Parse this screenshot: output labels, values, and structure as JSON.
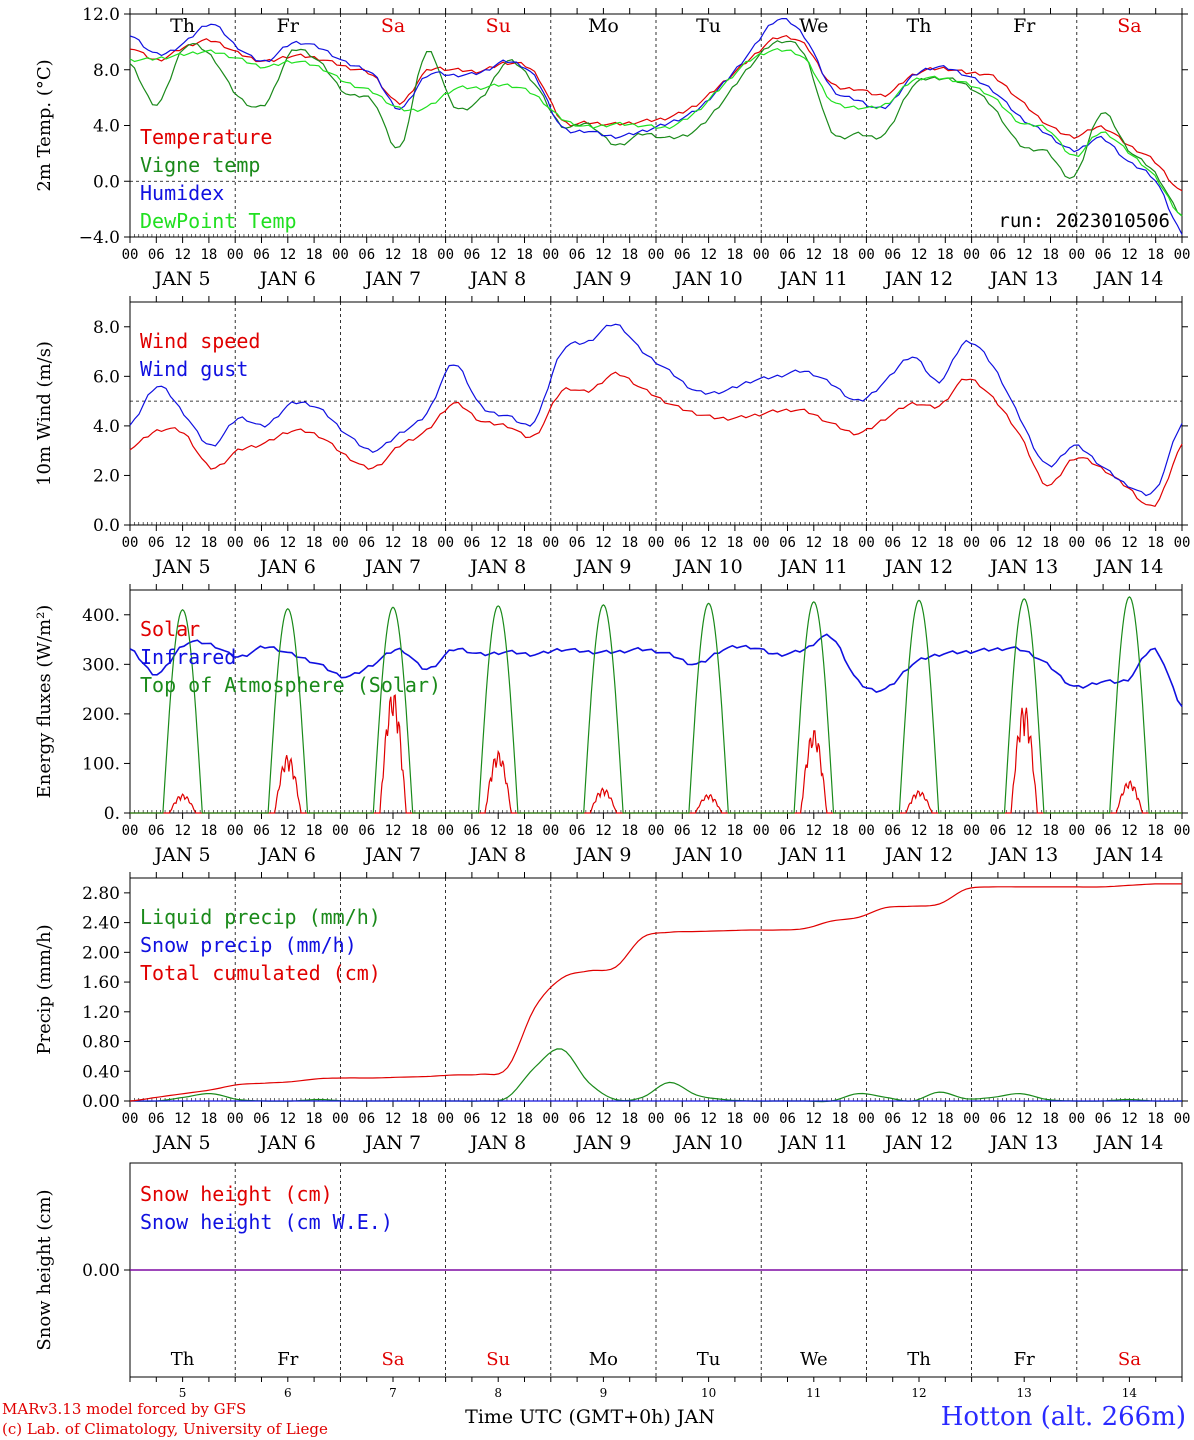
{
  "footer": {
    "credit_line1": "MARv3.13 model forced by GFS",
    "credit_line2": "(c) Lab. of Climatology, University of Liege",
    "station": "Hotton (alt. 266m)"
  },
  "colors": {
    "red": "#e00000",
    "green": "#1a8a1a",
    "blue": "#1010e0",
    "lightgreen": "#20e020",
    "purple": "#7a00a0",
    "blue_text": "#2a2aff"
  },
  "chart_data": [
    {
      "type": "line",
      "id": "temp",
      "ylabel": "2m Temp. (°C)",
      "ylim": [
        -4,
        12
      ],
      "yticks": [
        -4,
        0,
        4,
        8,
        12
      ],
      "tick_decimals": 1,
      "ref_line": 0,
      "run_label": "run: 2023010506",
      "day_labels": [
        "Th",
        "Fr",
        "Sa",
        "Su",
        "Mo",
        "Tu",
        "We",
        "Th",
        "Fr",
        "Sa"
      ],
      "weekend_days": [
        2,
        3,
        9
      ],
      "series": [
        {
          "name": "Temperature",
          "color": "#e00000",
          "values": [
            9.6,
            8.7,
            9.6,
            10.1,
            9.2,
            8.6,
            9.0,
            8.8,
            8.2,
            7.6,
            5.6,
            7.9,
            8.0,
            7.9,
            8.5,
            7.8,
            4.4,
            4.2,
            4.1,
            4.3,
            4.6,
            5.5,
            7.1,
            8.8,
            10.3,
            9.8,
            7.0,
            6.6,
            6.2,
            7.6,
            8.1,
            7.8,
            7.5,
            5.8,
            4.1,
            3.2,
            3.9,
            2.6,
            1.4,
            -0.8
          ]
        },
        {
          "name": "Vigne temp",
          "color": "#1a8a1a",
          "values": [
            8.4,
            5.5,
            9.6,
            9.0,
            6.1,
            5.5,
            9.3,
            8.6,
            6.3,
            5.8,
            2.4,
            9.3,
            5.4,
            5.9,
            8.6,
            7.0,
            4.0,
            4.1,
            2.6,
            3.4,
            3.1,
            3.7,
            5.8,
            8.3,
            10.0,
            9.1,
            3.6,
            3.4,
            3.4,
            6.8,
            7.4,
            6.9,
            5.3,
            2.6,
            2.1,
            0.3,
            4.9,
            2.3,
            0.6,
            -2.5
          ]
        },
        {
          "name": "Humidex",
          "color": "#1010e0",
          "values": [
            10.5,
            9.1,
            9.9,
            11.3,
            9.6,
            8.6,
            9.9,
            9.6,
            8.5,
            7.7,
            5.2,
            7.6,
            7.6,
            7.8,
            8.6,
            7.5,
            3.9,
            3.6,
            3.2,
            3.6,
            4.2,
            5.1,
            7.0,
            9.3,
            11.6,
            10.4,
            6.7,
            5.8,
            5.3,
            7.5,
            8.2,
            7.6,
            6.5,
            4.6,
            3.4,
            2.2,
            3.1,
            1.4,
            0.1,
            -3.7
          ]
        },
        {
          "name": "DewPoint Temp",
          "color": "#20e020",
          "values": [
            8.7,
            8.8,
            9.1,
            9.3,
            8.8,
            8.2,
            8.6,
            8.2,
            7.1,
            6.4,
            5.2,
            5.3,
            6.6,
            6.7,
            6.9,
            6.2,
            4.5,
            3.9,
            4.1,
            4.0,
            3.9,
            5.0,
            6.9,
            8.7,
            9.4,
            8.8,
            5.8,
            5.3,
            5.5,
            7.2,
            7.4,
            7.0,
            6.0,
            4.2,
            3.8,
            1.8,
            3.5,
            2.1,
            0.3,
            -2.5
          ]
        }
      ]
    },
    {
      "type": "line",
      "id": "wind",
      "ylabel": "10m Wind (m/s)",
      "ylim": [
        0,
        9
      ],
      "yticks": [
        0,
        2,
        4,
        6,
        8
      ],
      "tick_decimals": 1,
      "ref_line": 5,
      "series": [
        {
          "name": "Wind speed",
          "color": "#e00000",
          "values": [
            3.1,
            3.8,
            3.7,
            2.3,
            3.0,
            3.3,
            3.8,
            3.6,
            2.8,
            2.3,
            3.2,
            3.8,
            4.9,
            4.2,
            4.0,
            3.6,
            5.4,
            5.4,
            6.1,
            5.5,
            4.9,
            4.5,
            4.3,
            4.4,
            4.6,
            4.6,
            4.1,
            3.7,
            4.3,
            4.9,
            4.8,
            5.9,
            5.1,
            3.6,
            1.6,
            2.7,
            2.3,
            1.5,
            0.8,
            3.2
          ]
        },
        {
          "name": "Wind gust",
          "color": "#1010e0",
          "values": [
            4.0,
            5.6,
            4.5,
            3.2,
            4.3,
            4.0,
            4.9,
            4.7,
            3.7,
            3.0,
            3.7,
            4.5,
            6.5,
            4.8,
            4.4,
            4.2,
            7.0,
            7.4,
            8.1,
            7.0,
            6.2,
            5.4,
            5.4,
            5.8,
            6.0,
            6.2,
            5.7,
            5.0,
            5.8,
            6.8,
            5.8,
            7.4,
            6.4,
            4.3,
            2.4,
            3.2,
            2.4,
            1.6,
            1.4,
            4.1
          ]
        }
      ]
    },
    {
      "type": "line",
      "id": "energy",
      "ylabel": "Energy fluxes (W/m²)",
      "ylim": [
        0,
        450
      ],
      "yticks": [
        0,
        100,
        200,
        300,
        400
      ],
      "tick_decimals": 0,
      "series": [
        {
          "name": "Solar",
          "color": "#e00000",
          "daily_peak": [
            38,
            118,
            248,
            125,
            50,
            38,
            170,
            45,
            220,
            65
          ]
        },
        {
          "name": "Infrared",
          "color": "#1010e0",
          "values": [
            330,
            280,
            340,
            340,
            315,
            335,
            320,
            300,
            275,
            300,
            330,
            290,
            330,
            320,
            325,
            320,
            330,
            325,
            325,
            330,
            320,
            300,
            330,
            335,
            320,
            330,
            355,
            265,
            250,
            300,
            320,
            325,
            330,
            330,
            300,
            255,
            265,
            270,
            330,
            215
          ]
        },
        {
          "name": "Top of Atmosphere (Solar)",
          "color": "#1a8a1a",
          "daily_peak": [
            410,
            412,
            415,
            418,
            420,
            423,
            426,
            429,
            432,
            436
          ]
        }
      ]
    },
    {
      "type": "line",
      "id": "precip",
      "ylabel": "Precip (mm/h)",
      "ylim": [
        0,
        3.0
      ],
      "yticks": [
        0,
        0.4,
        0.8,
        1.2,
        1.6,
        2.0,
        2.4,
        2.8
      ],
      "tick_decimals": 2,
      "series": [
        {
          "name": "Liquid precip (mm/h)",
          "color": "#1a8a1a",
          "values": [
            0,
            0,
            0.05,
            0.1,
            0.02,
            0,
            0,
            0.02,
            0,
            0,
            0,
            0,
            0,
            0,
            0.05,
            0.45,
            0.7,
            0.25,
            0.02,
            0.05,
            0.25,
            0.08,
            0.02,
            0,
            0,
            0,
            0,
            0.1,
            0.05,
            0,
            0.12,
            0.03,
            0.05,
            0.1,
            0.02,
            0,
            0,
            0.02,
            0,
            0
          ]
        },
        {
          "name": "Snow precip (mm/h)",
          "color": "#1010e0",
          "values": [
            0,
            0,
            0,
            0,
            0,
            0,
            0,
            0,
            0,
            0,
            0,
            0,
            0,
            0,
            0,
            0,
            0,
            0,
            0,
            0,
            0,
            0,
            0,
            0,
            0,
            0,
            0,
            0,
            0,
            0,
            0,
            0,
            0,
            0,
            0,
            0,
            0,
            0,
            0,
            0
          ]
        },
        {
          "name": "Total cumulated (cm)",
          "color": "#e00000",
          "values": [
            0.0,
            0.05,
            0.1,
            0.15,
            0.22,
            0.24,
            0.26,
            0.3,
            0.31,
            0.31,
            0.32,
            0.33,
            0.35,
            0.36,
            0.45,
            1.25,
            1.65,
            1.75,
            1.8,
            2.2,
            2.27,
            2.28,
            2.29,
            2.3,
            2.3,
            2.32,
            2.42,
            2.47,
            2.6,
            2.62,
            2.65,
            2.85,
            2.88,
            2.88,
            2.88,
            2.88,
            2.88,
            2.9,
            2.92,
            2.92
          ]
        }
      ]
    },
    {
      "type": "line",
      "id": "snow",
      "ylabel": "Snow height (cm)",
      "ylim": [
        -1,
        1
      ],
      "yticks": [
        0
      ],
      "tick_decimals": 2,
      "series": [
        {
          "name": "Snow height (cm)",
          "color": "#e00000",
          "values": [
            0,
            0
          ]
        },
        {
          "name": "Snow height (cm W.E.)",
          "color": "#1010e0",
          "values": [
            0,
            0
          ]
        }
      ],
      "day_labels": [
        "Th",
        "Fr",
        "Sa",
        "Su",
        "Mo",
        "Tu",
        "We",
        "Th",
        "Fr",
        "Sa"
      ],
      "day_numbers": [
        "5",
        "6",
        "7",
        "8",
        "9",
        "10",
        "11",
        "12",
        "13",
        "14"
      ],
      "weekend_days": [
        2,
        3,
        9
      ],
      "xlabel": "Time UTC (GMT+0h) JAN"
    }
  ],
  "x_axis": {
    "hour_labels": [
      "00",
      "06",
      "12",
      "18"
    ],
    "end_label": "00",
    "date_labels": [
      "JAN  5",
      "JAN  6",
      "JAN  7",
      "JAN  8",
      "JAN  9",
      "JAN 10",
      "JAN 11",
      "JAN 12",
      "JAN 13",
      "JAN 14"
    ]
  }
}
